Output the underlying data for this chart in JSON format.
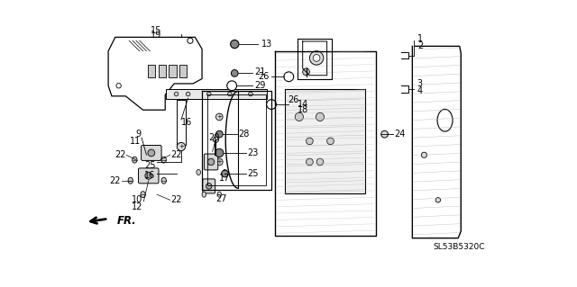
{
  "bg_color": "#ffffff",
  "lc": "#000000",
  "tc": "#000000",
  "fs": 7.0,
  "catalog": "SL53B5320C",
  "figsize": [
    6.4,
    3.19
  ],
  "dpi": 100
}
